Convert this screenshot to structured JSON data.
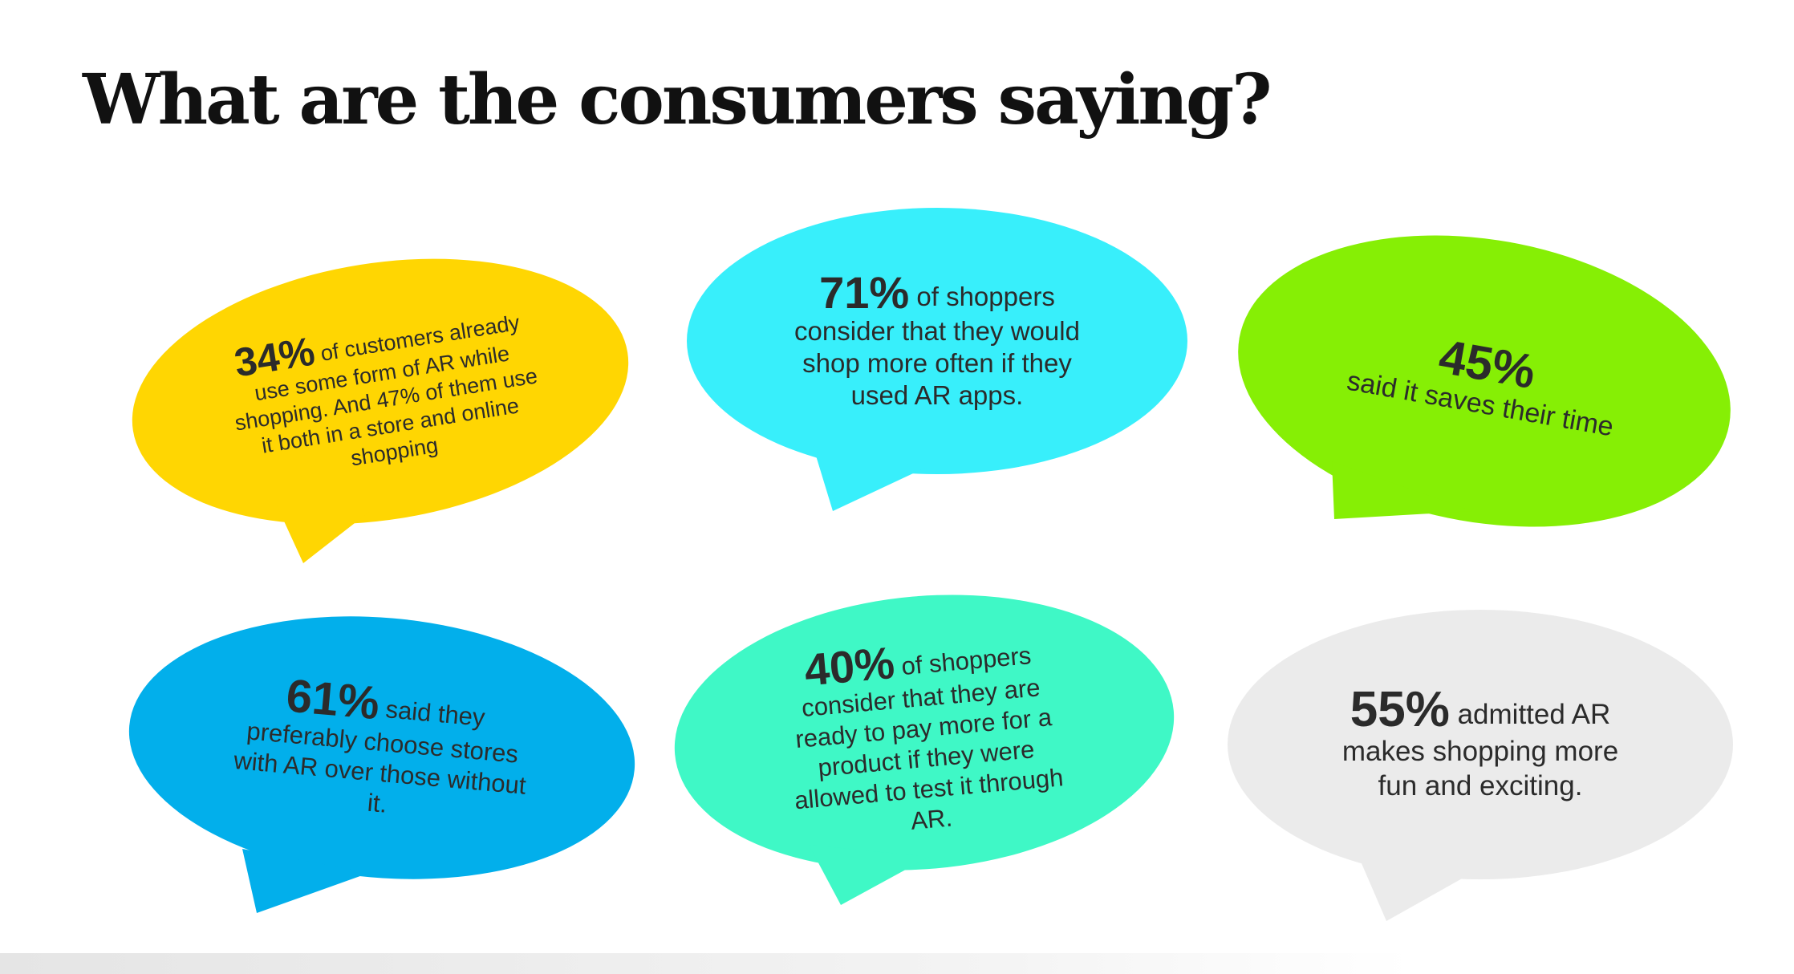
{
  "title": "What are the consumers saying?",
  "bubbles": [
    {
      "percent": "34%",
      "line1": "of customers already",
      "rest": [
        "use some form of AR while",
        "shopping. And 47% of them use",
        "it both in a store and online",
        "shopping"
      ],
      "color": "#FFD602"
    },
    {
      "percent": "71%",
      "line1": "of shoppers",
      "rest": [
        "consider that they would",
        "shop more often if they",
        "used AR apps."
      ],
      "color": "#38EFFB"
    },
    {
      "percent": "45%",
      "line1": "",
      "rest": [
        "said it saves their time"
      ],
      "color": "#86EF05"
    },
    {
      "percent": "61%",
      "line1": "said they",
      "rest": [
        "preferably choose stores",
        "with AR over those without",
        "it."
      ],
      "color": "#02AFEB"
    },
    {
      "percent": "40%",
      "line1": "of shoppers",
      "rest": [
        "consider that they are",
        "ready to pay more for a",
        "product if they were",
        "allowed to test it through",
        "AR."
      ],
      "color": "#3FF8C6"
    },
    {
      "percent": "55%",
      "line1": "admitted AR",
      "rest": [
        "makes shopping more",
        "fun and exciting."
      ],
      "color": "#EBEBEB"
    }
  ]
}
